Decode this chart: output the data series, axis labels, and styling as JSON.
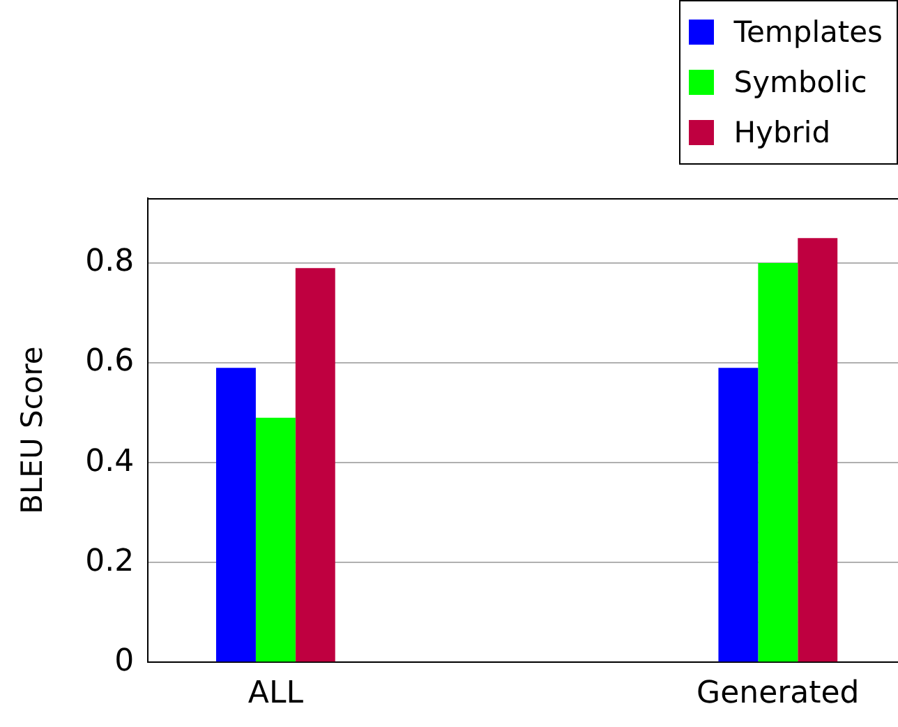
{
  "chart_data": {
    "type": "bar",
    "ylabel": "BLEU Score",
    "categories": [
      "ALL",
      "Generated"
    ],
    "series": [
      {
        "name": "Templates",
        "color": "#0000ff",
        "values": [
          0.59,
          0.59
        ]
      },
      {
        "name": "Symbolic",
        "color": "#00ff00",
        "values": [
          0.49,
          0.8
        ]
      },
      {
        "name": "Hybrid",
        "color": "#bf0040",
        "values": [
          0.79,
          0.85
        ]
      }
    ],
    "ylim": [
      0,
      0.93
    ],
    "yticks": [
      0,
      0.2,
      0.4,
      0.6,
      0.8
    ],
    "grid": "y",
    "legend": "top right"
  }
}
